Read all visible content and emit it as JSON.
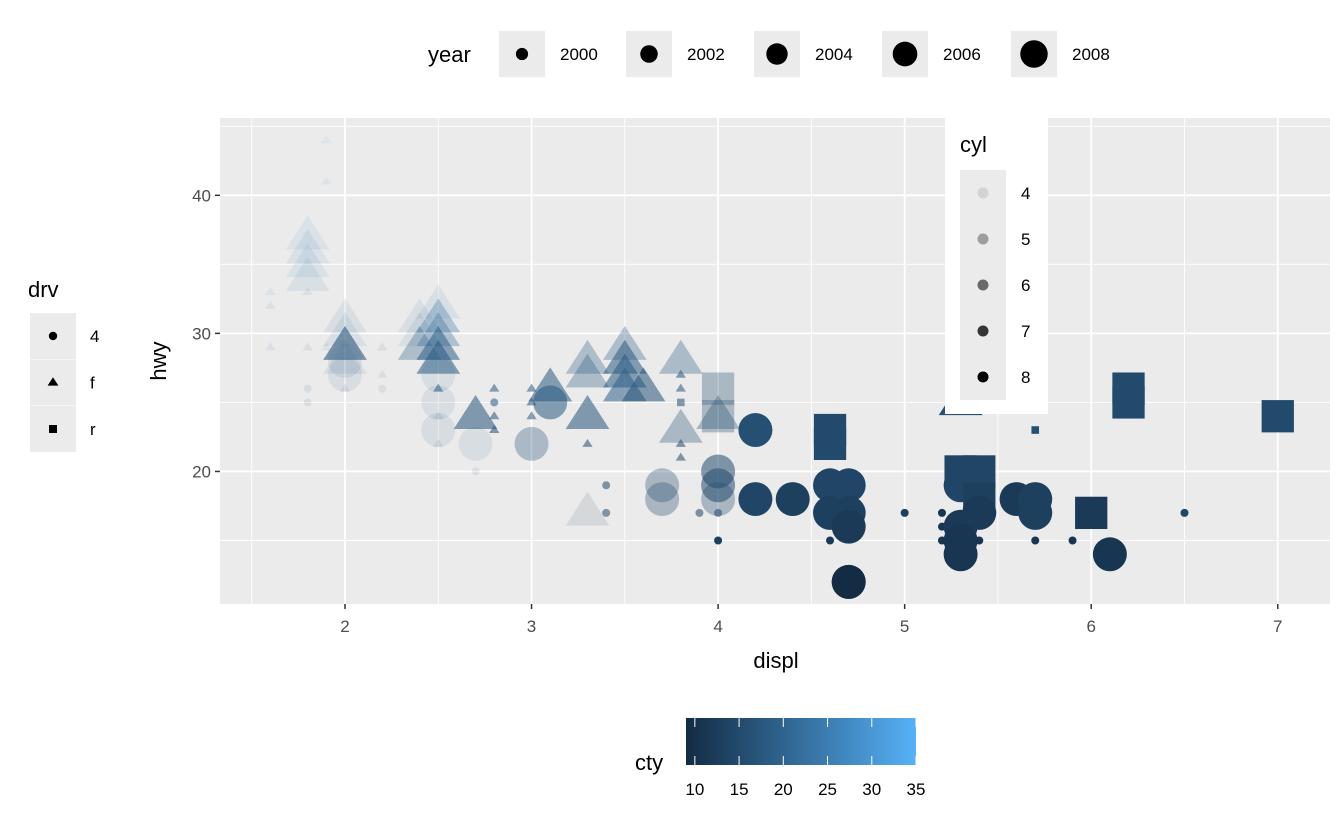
{
  "chart_data": {
    "type": "scatter",
    "xlabel": "displ",
    "ylabel": "hwy",
    "xlim": [
      1.33,
      7.28
    ],
    "ylim": [
      10.4,
      45.6
    ],
    "x_ticks": [
      2,
      3,
      4,
      5,
      6,
      7
    ],
    "y_ticks": [
      20,
      30,
      40
    ],
    "grid": true,
    "point_fields": [
      "displ",
      "hwy",
      "cty",
      "year",
      "drv",
      "cyl"
    ],
    "points": [
      [
        1.6,
        33,
        28,
        1999,
        "f",
        4
      ],
      [
        1.6,
        32,
        24,
        1999,
        "f",
        4
      ],
      [
        1.6,
        29,
        23,
        1999,
        "f",
        4
      ],
      [
        1.8,
        29,
        21,
        1999,
        "f",
        4
      ],
      [
        1.8,
        33,
        24,
        1999,
        "f",
        4
      ],
      [
        1.8,
        26,
        18,
        1999,
        "4",
        4
      ],
      [
        1.8,
        25,
        16,
        1999,
        "4",
        4
      ],
      [
        1.8,
        37,
        28,
        2008,
        "f",
        4
      ],
      [
        1.8,
        36,
        26,
        2008,
        "f",
        4
      ],
      [
        1.8,
        35,
        26,
        2008,
        "f",
        4
      ],
      [
        1.8,
        34,
        25,
        2008,
        "f",
        4
      ],
      [
        1.9,
        44,
        35,
        1999,
        "f",
        4
      ],
      [
        1.9,
        41,
        33,
        1999,
        "f",
        4
      ],
      [
        1.9,
        29,
        29,
        1999,
        "f",
        4
      ],
      [
        2.0,
        31,
        21,
        2008,
        "f",
        4
      ],
      [
        2.0,
        30,
        22,
        2008,
        "f",
        4
      ],
      [
        2.0,
        29,
        21,
        2008,
        "f",
        4
      ],
      [
        2.0,
        28,
        19,
        2008,
        "f",
        4
      ],
      [
        2.0,
        28,
        20,
        2008,
        "4",
        4
      ],
      [
        2.0,
        27,
        19,
        2008,
        "4",
        4
      ],
      [
        2.0,
        26,
        20,
        1999,
        "f",
        4
      ],
      [
        2.0,
        29,
        17,
        2008,
        "f",
        6
      ],
      [
        2.2,
        27,
        21,
        1999,
        "f",
        4
      ],
      [
        2.2,
        26,
        21,
        1999,
        "4",
        4
      ],
      [
        2.2,
        29,
        21,
        1999,
        "f",
        4
      ],
      [
        2.4,
        31,
        22,
        2008,
        "f",
        4
      ],
      [
        2.4,
        30,
        21,
        2008,
        "f",
        4
      ],
      [
        2.4,
        29,
        19,
        2008,
        "f",
        5
      ],
      [
        2.5,
        32,
        22,
        2008,
        "f",
        4
      ],
      [
        2.5,
        31,
        23,
        2008,
        "f",
        5
      ],
      [
        2.5,
        30,
        21,
        2008,
        "f",
        5
      ],
      [
        2.5,
        29,
        19,
        2008,
        "f",
        6
      ],
      [
        2.5,
        28,
        18,
        2008,
        "f",
        6
      ],
      [
        2.5,
        27,
        20,
        2008,
        "4",
        4
      ],
      [
        2.5,
        25,
        19,
        2008,
        "4",
        4
      ],
      [
        2.5,
        23,
        18,
        2008,
        "4",
        4
      ],
      [
        2.5,
        26,
        18,
        1999,
        "f",
        6
      ],
      [
        2.5,
        24,
        18,
        1999,
        "f",
        4
      ],
      [
        2.5,
        22,
        18,
        1999,
        "f",
        4
      ],
      [
        2.7,
        22,
        19,
        2008,
        "4",
        4
      ],
      [
        2.7,
        20,
        16,
        1999,
        "4",
        4
      ],
      [
        2.7,
        24,
        17,
        2008,
        "f",
        6
      ],
      [
        2.8,
        26,
        18,
        1999,
        "f",
        6
      ],
      [
        2.8,
        25,
        18,
        1999,
        "4",
        6
      ],
      [
        2.8,
        24,
        17,
        1999,
        "f",
        6
      ],
      [
        2.8,
        23,
        16,
        1999,
        "f",
        6
      ],
      [
        3.0,
        26,
        18,
        1999,
        "f",
        6
      ],
      [
        3.0,
        25,
        17,
        1999,
        "f",
        6
      ],
      [
        3.0,
        24,
        18,
        1999,
        "f",
        6
      ],
      [
        3.0,
        22,
        17,
        2008,
        "4",
        5
      ],
      [
        3.1,
        25,
        18,
        2008,
        "4",
        6
      ],
      [
        3.1,
        26,
        18,
        2008,
        "f",
        6
      ],
      [
        3.3,
        28,
        19,
        2008,
        "f",
        5
      ],
      [
        3.3,
        27,
        18,
        2008,
        "f",
        5
      ],
      [
        3.3,
        24,
        17,
        2008,
        "f",
        6
      ],
      [
        3.3,
        22,
        16,
        1999,
        "f",
        6
      ],
      [
        3.3,
        17,
        11,
        2008,
        "f",
        4
      ],
      [
        3.4,
        19,
        15,
        1999,
        "4",
        6
      ],
      [
        3.4,
        17,
        15,
        1999,
        "4",
        6
      ],
      [
        3.5,
        29,
        19,
        2008,
        "f",
        5
      ],
      [
        3.5,
        28,
        18,
        2008,
        "f",
        6
      ],
      [
        3.5,
        27,
        18,
        2008,
        "f",
        6
      ],
      [
        3.5,
        26,
        19,
        2008,
        "f",
        6
      ],
      [
        3.6,
        26,
        17,
        2008,
        "f",
        6
      ],
      [
        3.7,
        19,
        15,
        2008,
        "4",
        5
      ],
      [
        3.7,
        18,
        15,
        2008,
        "4",
        5
      ],
      [
        3.8,
        28,
        18,
        2008,
        "f",
        5
      ],
      [
        3.8,
        23,
        16,
        2008,
        "f",
        5
      ],
      [
        3.8,
        27,
        17,
        1999,
        "f",
        6
      ],
      [
        3.8,
        26,
        17,
        1999,
        "f",
        6
      ],
      [
        3.8,
        25,
        16,
        1999,
        "r",
        6
      ],
      [
        3.8,
        22,
        15,
        1999,
        "f",
        6
      ],
      [
        3.8,
        21,
        15,
        1999,
        "f",
        6
      ],
      [
        3.9,
        17,
        14,
        1999,
        "4",
        6
      ],
      [
        4.0,
        26,
        16,
        2008,
        "r",
        5
      ],
      [
        4.0,
        24,
        16,
        2008,
        "r",
        5
      ],
      [
        4.0,
        24,
        15,
        2008,
        "f",
        5
      ],
      [
        4.0,
        20,
        15,
        2008,
        "4",
        6
      ],
      [
        4.0,
        19,
        15,
        2008,
        "4",
        6
      ],
      [
        4.0,
        18,
        15,
        2008,
        "4",
        5
      ],
      [
        4.0,
        17,
        14,
        1999,
        "4",
        6
      ],
      [
        4.0,
        15,
        13,
        1999,
        "4",
        8
      ],
      [
        4.2,
        23,
        16,
        2008,
        "4",
        8
      ],
      [
        4.2,
        18,
        14,
        2008,
        "4",
        8
      ],
      [
        4.4,
        18,
        13,
        2008,
        "4",
        8
      ],
      [
        4.6,
        22,
        15,
        2008,
        "r",
        8
      ],
      [
        4.6,
        23,
        15,
        2008,
        "r",
        8
      ],
      [
        4.6,
        19,
        14,
        2008,
        "4",
        8
      ],
      [
        4.6,
        17,
        13,
        2008,
        "4",
        8
      ],
      [
        4.6,
        17,
        13,
        1999,
        "4",
        8
      ],
      [
        4.6,
        15,
        12,
        1999,
        "4",
        8
      ],
      [
        4.7,
        19,
        14,
        2008,
        "4",
        8
      ],
      [
        4.7,
        17,
        13,
        2008,
        "4",
        8
      ],
      [
        4.7,
        16,
        12,
        2008,
        "4",
        8
      ],
      [
        4.7,
        12,
        9,
        2008,
        "4",
        8
      ],
      [
        4.7,
        12,
        9,
        2008,
        "4",
        8
      ],
      [
        5.0,
        17,
        13,
        1999,
        "4",
        8
      ],
      [
        5.2,
        17,
        11,
        1999,
        "4",
        8
      ],
      [
        5.2,
        16,
        11,
        1999,
        "4",
        8
      ],
      [
        5.2,
        15,
        11,
        1999,
        "4",
        8
      ],
      [
        5.3,
        25,
        16,
        2008,
        "f",
        8
      ],
      [
        5.3,
        20,
        14,
        2008,
        "r",
        8
      ],
      [
        5.3,
        19,
        14,
        2008,
        "4",
        8
      ],
      [
        5.3,
        16,
        12,
        2008,
        "4",
        8
      ],
      [
        5.3,
        15,
        11,
        2008,
        "4",
        8
      ],
      [
        5.3,
        14,
        11,
        2008,
        "4",
        8
      ],
      [
        5.4,
        20,
        14,
        2008,
        "r",
        8
      ],
      [
        5.4,
        18,
        13,
        2008,
        "r",
        8
      ],
      [
        5.4,
        17,
        12,
        2008,
        "4",
        8
      ],
      [
        5.4,
        15,
        11,
        1999,
        "4",
        8
      ],
      [
        5.6,
        18,
        12,
        2008,
        "4",
        8
      ],
      [
        5.7,
        18,
        13,
        2008,
        "4",
        8
      ],
      [
        5.7,
        17,
        13,
        2008,
        "4",
        8
      ],
      [
        5.7,
        15,
        11,
        1999,
        "4",
        8
      ],
      [
        5.7,
        23,
        16,
        1999,
        "r",
        8
      ],
      [
        5.9,
        15,
        11,
        1999,
        "4",
        8
      ],
      [
        6.0,
        17,
        12,
        2008,
        "r",
        8
      ],
      [
        6.1,
        14,
        11,
        2008,
        "4",
        8
      ],
      [
        6.2,
        26,
        15,
        2008,
        "r",
        8
      ],
      [
        6.2,
        25,
        15,
        2008,
        "r",
        8
      ],
      [
        6.5,
        17,
        14,
        1999,
        "4",
        8
      ],
      [
        7.0,
        24,
        15,
        2008,
        "r",
        8
      ]
    ],
    "legends": {
      "year": {
        "title": "year",
        "labels": [
          "2000",
          "2002",
          "2004",
          "2006",
          "2008"
        ],
        "placement": "top"
      },
      "drv": {
        "title": "drv",
        "labels": [
          "4",
          "f",
          "r"
        ],
        "shapes": [
          "circle",
          "triangle",
          "square"
        ],
        "placement": "left"
      },
      "cyl": {
        "title": "cyl",
        "labels": [
          "4",
          "5",
          "6",
          "7",
          "8"
        ],
        "alpha": [
          0.1,
          0.325,
          0.55,
          0.775,
          1
        ],
        "placement": "inside top-right"
      },
      "cty": {
        "title": "cty",
        "labels": [
          "10",
          "15",
          "20",
          "25",
          "30",
          "35"
        ],
        "range": [
          9,
          35
        ],
        "low": "#132B43",
        "high": "#56B1F7",
        "placement": "bottom"
      }
    },
    "colors": {
      "panel": "#EBEBEB",
      "grid": "#FFFFFF"
    }
  }
}
